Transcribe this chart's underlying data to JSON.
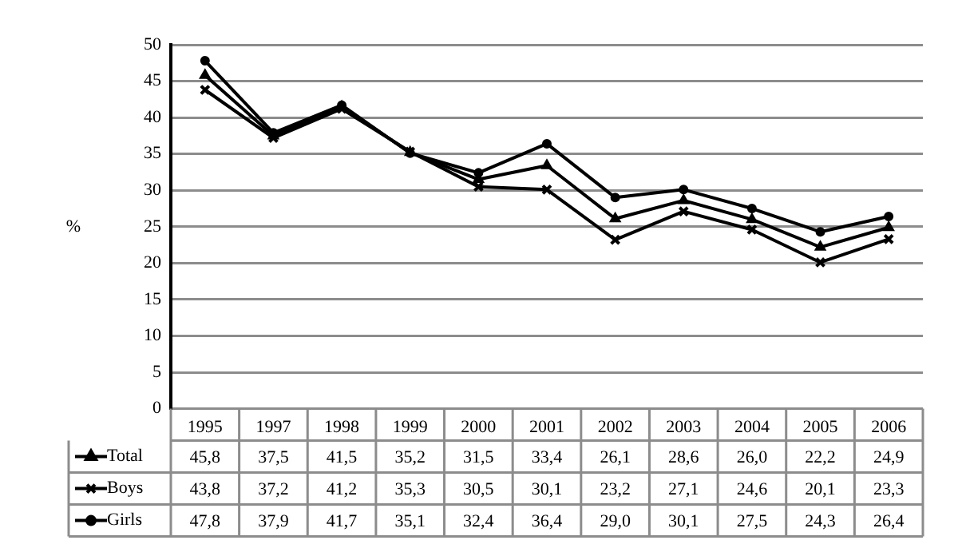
{
  "chart_data": {
    "type": "line",
    "ylabel": "%",
    "categories": [
      "1995",
      "1997",
      "1998",
      "1999",
      "2000",
      "2001",
      "2002",
      "2003",
      "2004",
      "2005",
      "2006"
    ],
    "ylim": [
      0,
      50
    ],
    "yticks": [
      0,
      5,
      10,
      15,
      20,
      25,
      30,
      35,
      40,
      45,
      50
    ],
    "grid": "y",
    "legend": "bottom",
    "line_style": "solid",
    "series": [
      {
        "name": "Total",
        "color": "#000000",
        "marker": "triangle",
        "values": [
          45.8,
          37.5,
          41.5,
          35.2,
          31.5,
          33.4,
          26.1,
          28.6,
          26.0,
          22.2,
          24.9
        ],
        "value_labels": [
          "45,8",
          "37,5",
          "41,5",
          "35,2",
          "31,5",
          "33,4",
          "26,1",
          "28,6",
          "26,0",
          "22,2",
          "24,9"
        ]
      },
      {
        "name": "Boys",
        "color": "#000000",
        "marker": "cross",
        "values": [
          43.8,
          37.2,
          41.2,
          35.3,
          30.5,
          30.1,
          23.2,
          27.1,
          24.6,
          20.1,
          23.3
        ],
        "value_labels": [
          "43,8",
          "37,2",
          "41,2",
          "35,3",
          "30,5",
          "30,1",
          "23,2",
          "27,1",
          "24,6",
          "20,1",
          "23,3"
        ]
      },
      {
        "name": "Girls",
        "color": "#000000",
        "marker": "circle",
        "values": [
          47.8,
          37.9,
          41.7,
          35.1,
          32.4,
          36.4,
          29.0,
          30.1,
          27.5,
          24.3,
          26.4
        ],
        "value_labels": [
          "47,8",
          "37,9",
          "41,7",
          "35,1",
          "32,4",
          "36,4",
          "29,0",
          "30,1",
          "27,5",
          "24,3",
          "26,4"
        ]
      }
    ]
  }
}
